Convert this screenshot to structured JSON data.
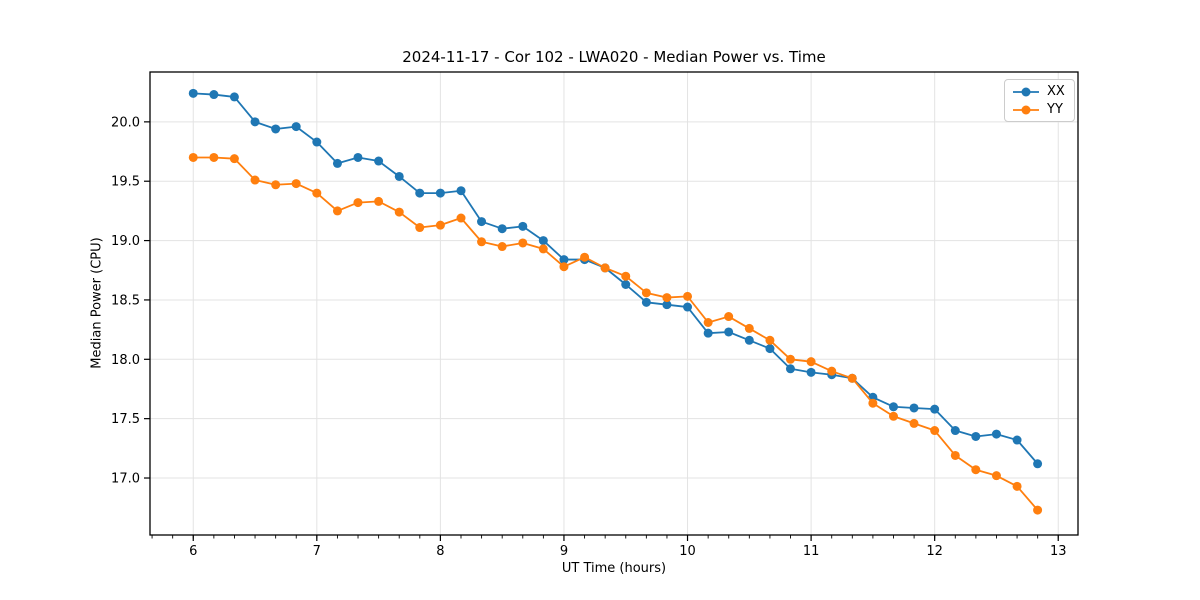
{
  "figure": {
    "title": "2024-11-17 - Cor 102 - LWA020 - Median Power vs. Time",
    "xlabel": "UT Time (hours)",
    "ylabel": "Median Power (CPU)"
  },
  "chart_data": {
    "type": "line",
    "title": "2024-11-17 - Cor 102 - LWA020 - Median Power vs. Time",
    "xlabel": "UT Time (hours)",
    "ylabel": "Median Power (CPU)",
    "xlim": [
      5.65,
      13.16
    ],
    "ylim": [
      16.52,
      20.42
    ],
    "x_ticks": [
      6,
      7,
      8,
      9,
      10,
      11,
      12,
      13
    ],
    "x_tick_labels": [
      "6",
      "7",
      "8",
      "9",
      "10",
      "11",
      "12",
      "13"
    ],
    "x_minor_tick_step": 0.16667,
    "y_ticks": [
      17.0,
      17.5,
      18.0,
      18.5,
      19.0,
      19.5,
      20.0
    ],
    "y_tick_labels": [
      "17.0",
      "17.5",
      "18.0",
      "18.5",
      "19.0",
      "19.5",
      "20.0"
    ],
    "grid": true,
    "grid_color": "#e3e3e3",
    "legend_position": "upper right",
    "x": [
      6.0,
      6.167,
      6.333,
      6.5,
      6.667,
      6.833,
      7.0,
      7.167,
      7.333,
      7.5,
      7.667,
      7.833,
      8.0,
      8.167,
      8.333,
      8.5,
      8.667,
      8.833,
      9.0,
      9.167,
      9.333,
      9.5,
      9.667,
      9.833,
      10.0,
      10.167,
      10.333,
      10.5,
      10.667,
      10.833,
      11.0,
      11.167,
      11.333,
      11.5,
      11.667,
      11.833,
      12.0,
      12.167,
      12.333,
      12.5,
      12.667,
      12.833
    ],
    "series": [
      {
        "name": "XX",
        "color": "#1f77b4",
        "values": [
          20.24,
          20.23,
          20.21,
          20.0,
          19.94,
          19.96,
          19.83,
          19.65,
          19.7,
          19.67,
          19.54,
          19.4,
          19.4,
          19.42,
          19.16,
          19.1,
          19.12,
          19.0,
          18.84,
          18.84,
          18.77,
          18.63,
          18.48,
          18.46,
          18.44,
          18.22,
          18.23,
          18.16,
          18.09,
          17.92,
          17.89,
          17.87,
          17.84,
          17.68,
          17.6,
          17.59,
          17.58,
          17.4,
          17.35,
          17.37,
          17.32,
          17.12
        ]
      },
      {
        "name": "YY",
        "color": "#ff7f0e",
        "values": [
          19.7,
          19.7,
          19.69,
          19.51,
          19.47,
          19.48,
          19.4,
          19.25,
          19.32,
          19.33,
          19.24,
          19.11,
          19.13,
          19.19,
          18.99,
          18.95,
          18.98,
          18.93,
          18.78,
          18.86,
          18.77,
          18.7,
          18.56,
          18.52,
          18.53,
          18.31,
          18.36,
          18.26,
          18.16,
          18.0,
          17.98,
          17.9,
          17.84,
          17.63,
          17.52,
          17.46,
          17.4,
          17.19,
          17.07,
          17.02,
          16.93,
          16.73
        ]
      }
    ]
  }
}
